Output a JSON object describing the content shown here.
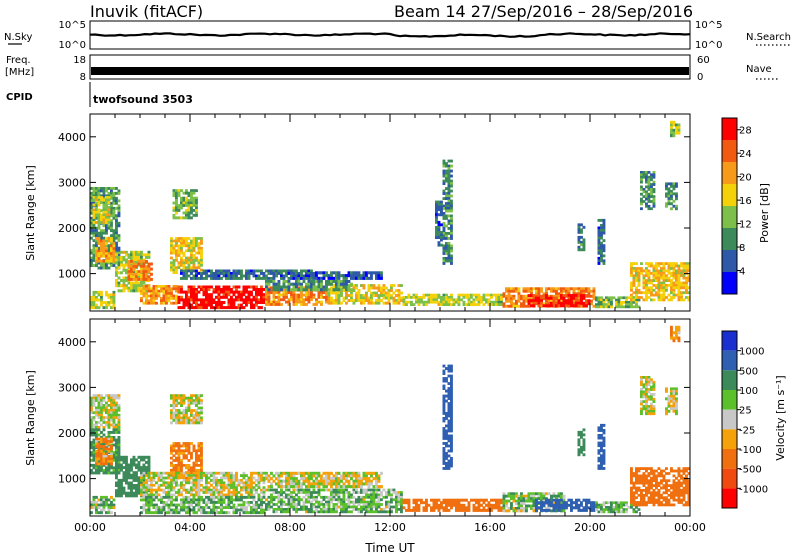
{
  "header": {
    "station": "Inuvik (fitACF)",
    "beam_date": "Beam 14  27/Sep/2016 – 28/Sep/2016"
  },
  "strips": {
    "nsky_label": "N.Sky",
    "nsky_ticks": [
      "10^5",
      "10^0"
    ],
    "nsearch_label": "N.Search",
    "nsearch_ticks": [
      "10^5",
      "10^0"
    ],
    "freq_label_1": "Freq.",
    "freq_label_2": "[MHz]",
    "freq_ticks": [
      "18",
      "8"
    ],
    "nave_label": "Nave",
    "nave_ticks": [
      "60",
      "0"
    ],
    "cpid_label": "CPID",
    "cpid_value": "twofsound 3503"
  },
  "colors": {
    "power_scale": [
      "#0000ff",
      "#2e58a8",
      "#3c8a5a",
      "#7cc04a",
      "#f5d10a",
      "#f79a1a",
      "#f15a10",
      "#ff0000"
    ],
    "velocity_scale": [
      "#1a2fd0",
      "#2f5fb0",
      "#3c8a5a",
      "#5cc02a",
      "#c8c8c8",
      "#f5a10a",
      "#f07010",
      "#f04a10",
      "#ff0000"
    ],
    "velocity_ground": "#c8c8c8"
  },
  "chart_data": [
    {
      "type": "heatmap",
      "name": "power",
      "ylabel": "Slant Range [km]",
      "ylim": [
        180,
        4500
      ],
      "yticks": [
        "1000",
        "2000",
        "3000",
        "4000"
      ],
      "xlim": [
        0,
        24
      ],
      "xticks": [
        "00:00",
        "04:00",
        "08:00",
        "12:00",
        "16:00",
        "20:00",
        "00:00"
      ],
      "colorbar": {
        "label": "Power [dB]",
        "ticks": [
          "4",
          "8",
          "12",
          "16",
          "20",
          "24",
          "28"
        ],
        "range": [
          0,
          30
        ]
      },
      "regions": [
        {
          "t0": 0.0,
          "t1": 1.2,
          "r0": 1100,
          "r1": 2900,
          "value": 10
        },
        {
          "t0": 0.1,
          "t1": 0.8,
          "r0": 2100,
          "r1": 2700,
          "value": 16
        },
        {
          "t0": 0.2,
          "t1": 1.0,
          "r0": 1250,
          "r1": 1800,
          "value": 20
        },
        {
          "t0": 0.0,
          "t1": 1.0,
          "r0": 230,
          "r1": 620,
          "value": 15
        },
        {
          "t0": 1.0,
          "t1": 2.4,
          "r0": 600,
          "r1": 1500,
          "value": 15
        },
        {
          "t0": 1.5,
          "t1": 2.5,
          "r0": 850,
          "r1": 1300,
          "value": 22
        },
        {
          "t0": 3.2,
          "t1": 4.5,
          "r0": 1000,
          "r1": 1800,
          "value": 17
        },
        {
          "t0": 3.3,
          "t1": 4.3,
          "r0": 2200,
          "r1": 2850,
          "value": 12
        },
        {
          "t0": 3.6,
          "t1": 9.0,
          "r0": 870,
          "r1": 1090,
          "value": 7
        },
        {
          "t0": 9.0,
          "t1": 11.7,
          "r0": 870,
          "r1": 1050,
          "value": 6
        },
        {
          "t0": 2.0,
          "t1": 3.5,
          "r0": 330,
          "r1": 750,
          "value": 21
        },
        {
          "t0": 3.5,
          "t1": 7.0,
          "r0": 230,
          "r1": 740,
          "value": 29
        },
        {
          "t0": 7.0,
          "t1": 9.5,
          "r0": 300,
          "r1": 720,
          "value": 22
        },
        {
          "t0": 9.5,
          "t1": 12.5,
          "r0": 330,
          "r1": 770,
          "value": 17
        },
        {
          "t0": 7.0,
          "t1": 10.5,
          "r0": 620,
          "r1": 860,
          "value": 10
        },
        {
          "t0": 12.5,
          "t1": 16.5,
          "r0": 300,
          "r1": 560,
          "value": 15
        },
        {
          "t0": 16.5,
          "t1": 20.2,
          "r0": 260,
          "r1": 700,
          "value": 22
        },
        {
          "t0": 17.5,
          "t1": 20.0,
          "r0": 270,
          "r1": 550,
          "value": 28
        },
        {
          "t0": 20.2,
          "t1": 22.0,
          "r0": 250,
          "r1": 500,
          "value": 12
        },
        {
          "t0": 21.6,
          "t1": 24.0,
          "r0": 400,
          "r1": 1250,
          "value": 18
        },
        {
          "t0": 22.0,
          "t1": 22.6,
          "r0": 2400,
          "r1": 3250,
          "value": 10
        },
        {
          "t0": 23.0,
          "t1": 23.5,
          "r0": 2400,
          "r1": 3000,
          "value": 9
        },
        {
          "t0": 14.1,
          "t1": 14.5,
          "r0": 1200,
          "r1": 3500,
          "value": 9
        },
        {
          "t0": 13.8,
          "t1": 14.1,
          "r0": 1600,
          "r1": 2600,
          "value": 7
        },
        {
          "t0": 19.5,
          "t1": 19.8,
          "r0": 1500,
          "r1": 2100,
          "value": 8
        },
        {
          "t0": 20.3,
          "t1": 20.6,
          "r0": 1200,
          "r1": 2200,
          "value": 7
        },
        {
          "t0": 23.2,
          "t1": 23.6,
          "r0": 4000,
          "r1": 4350,
          "value": 14
        }
      ]
    },
    {
      "type": "heatmap",
      "name": "velocity",
      "ylabel": "Slant Range [km]",
      "ylim": [
        180,
        4500
      ],
      "yticks": [
        "1000",
        "2000",
        "3000",
        "4000"
      ],
      "xlim": [
        0,
        24
      ],
      "xticks": [
        "00:00",
        "04:00",
        "08:00",
        "12:00",
        "16:00",
        "20:00",
        "00:00"
      ],
      "xlabel": "Time UT",
      "colorbar": {
        "label": "Velocity [m s⁻¹]",
        "ticks": [
          "1000",
          "500",
          "100",
          "25",
          "-25",
          "-100",
          "-500",
          "-1000"
        ]
      },
      "regions": [
        {
          "t0": 0.0,
          "t1": 1.2,
          "r0": 2100,
          "r1": 2850,
          "value": 0
        },
        {
          "t0": 0.0,
          "t1": 1.2,
          "r0": 1100,
          "r1": 2100,
          "value": 150
        },
        {
          "t0": 0.2,
          "t1": 0.9,
          "r0": 1300,
          "r1": 1900,
          "value": -120
        },
        {
          "t0": 0.0,
          "t1": 1.0,
          "r0": 230,
          "r1": 620,
          "value": 60
        },
        {
          "t0": 1.0,
          "t1": 2.4,
          "r0": 600,
          "r1": 1500,
          "value": 200
        },
        {
          "t0": 3.2,
          "t1": 4.5,
          "r0": 2200,
          "r1": 2850,
          "value": 0
        },
        {
          "t0": 3.2,
          "t1": 4.5,
          "r0": 1000,
          "r1": 1800,
          "value": -150
        },
        {
          "t0": 2.0,
          "t1": 7.0,
          "r0": 620,
          "r1": 1150,
          "value": 0
        },
        {
          "t0": 7.0,
          "t1": 11.7,
          "r0": 800,
          "r1": 1150,
          "value": 0
        },
        {
          "t0": 2.0,
          "t1": 7.0,
          "r0": 230,
          "r1": 620,
          "value": 80
        },
        {
          "t0": 7.0,
          "t1": 12.5,
          "r0": 250,
          "r1": 780,
          "value": 70
        },
        {
          "t0": 12.5,
          "t1": 16.5,
          "r0": 280,
          "r1": 560,
          "value": -200
        },
        {
          "t0": 16.5,
          "t1": 19.0,
          "r0": 270,
          "r1": 700,
          "value": 60
        },
        {
          "t0": 17.8,
          "t1": 20.2,
          "r0": 280,
          "r1": 560,
          "value": 700
        },
        {
          "t0": 20.2,
          "t1": 22.0,
          "r0": 250,
          "r1": 500,
          "value": 80
        },
        {
          "t0": 21.6,
          "t1": 24.0,
          "r0": 400,
          "r1": 1250,
          "value": -300
        },
        {
          "t0": 22.0,
          "t1": 22.6,
          "r0": 2400,
          "r1": 3250,
          "value": 0
        },
        {
          "t0": 23.0,
          "t1": 23.5,
          "r0": 2400,
          "r1": 3000,
          "value": 0
        },
        {
          "t0": 14.1,
          "t1": 14.5,
          "r0": 1200,
          "r1": 3500,
          "value": 600
        },
        {
          "t0": 19.5,
          "t1": 19.8,
          "r0": 1500,
          "r1": 2100,
          "value": 300
        },
        {
          "t0": 20.3,
          "t1": 20.6,
          "r0": 1200,
          "r1": 2200,
          "value": 700
        },
        {
          "t0": 23.2,
          "t1": 23.6,
          "r0": 4000,
          "r1": 4350,
          "value": -60
        }
      ]
    }
  ]
}
